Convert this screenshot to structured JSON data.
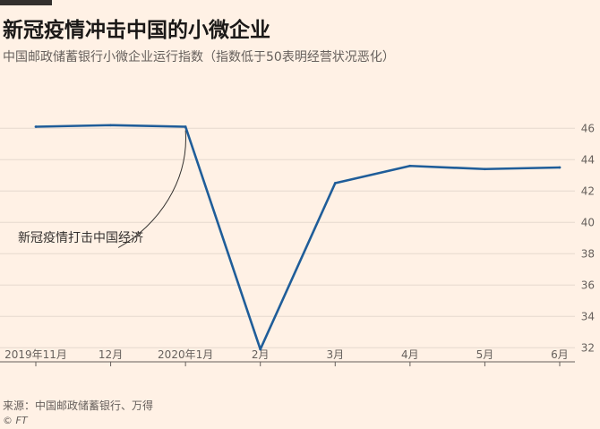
{
  "header": {
    "title": "新冠疫情冲击中国的小微企业",
    "subtitle": "中国邮政储蓄银行小微企业运行指数（指数低于50表明经营状况恶化）"
  },
  "footer": {
    "source": "来源：中国邮政储蓄银行、万得",
    "credit": "© FT"
  },
  "chart_data": {
    "type": "line",
    "categories": [
      "2019年11月",
      "12月",
      "2020年1月",
      "2月",
      "3月",
      "4月",
      "5月",
      "6月"
    ],
    "series": [
      {
        "values": [
          46.1,
          46.2,
          46.1,
          31.9,
          42.5,
          43.6,
          43.4,
          43.5
        ],
        "color": "#1f5d99"
      }
    ],
    "y_ticks": [
      32,
      34,
      36,
      38,
      40,
      42,
      44,
      46
    ],
    "ylim": [
      31.5,
      47.5
    ],
    "grid": true,
    "annotation": {
      "text": "新冠疫情打击中国经济",
      "category": "2020年1月"
    }
  }
}
